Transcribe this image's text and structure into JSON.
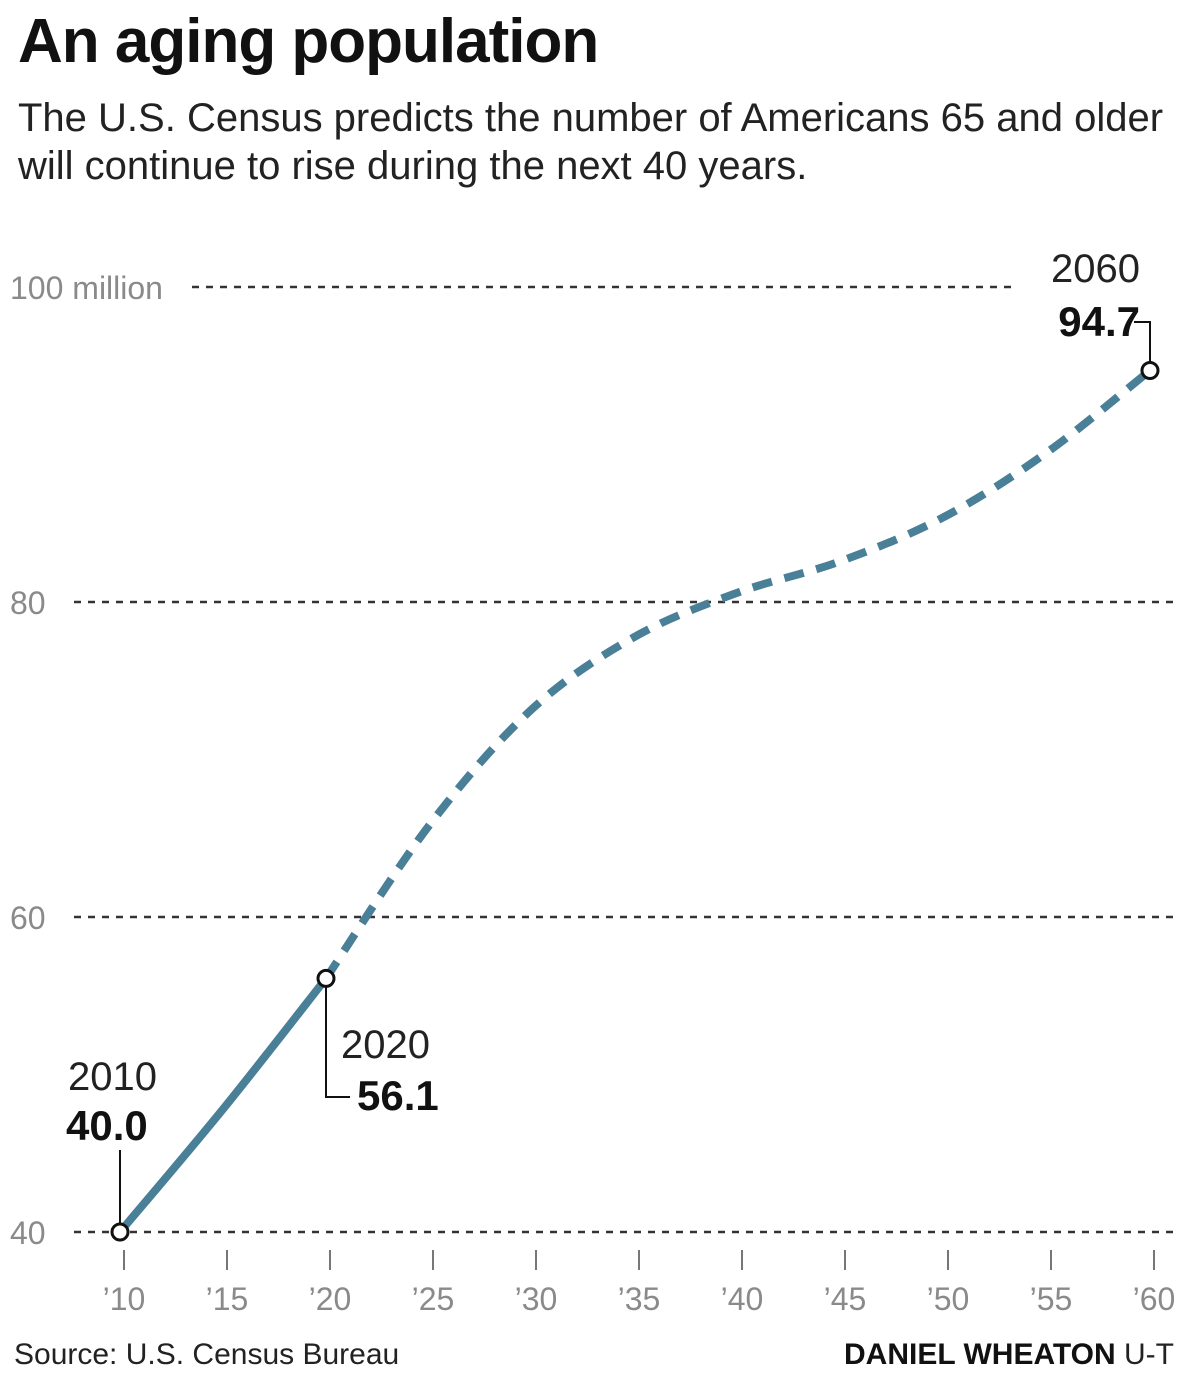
{
  "header": {
    "title": "An aging population",
    "subtitle": "The U.S. Census predicts the number of Americans 65 and older will continue to rise during the next 40 years."
  },
  "footer": {
    "source": "Source: U.S. Census Bureau",
    "credit_name": "DANIEL WHEATON",
    "credit_org": "U-T"
  },
  "chart_data": {
    "type": "line",
    "title": "An aging population",
    "subtitle": "The U.S. Census predicts the number of Americans 65 and older will continue to rise during the next 40 years.",
    "xlabel": "",
    "ylabel": "",
    "xlim": [
      2010,
      2060
    ],
    "ylim": [
      40,
      100
    ],
    "grid": true,
    "legend": "none",
    "x_ticks": [
      2010,
      2015,
      2020,
      2025,
      2030,
      2035,
      2040,
      2045,
      2050,
      2055,
      2060
    ],
    "x_tick_labels": [
      "’10",
      "’15",
      "’20",
      "’25",
      "’30",
      "’35",
      "’40",
      "’45",
      "’50",
      "’55",
      "’60"
    ],
    "y_ticks": [
      40,
      60,
      80,
      100
    ],
    "y_tick_labels": [
      "40",
      "60",
      "80",
      "100 million"
    ],
    "series": [
      {
        "style": "solid",
        "color": "#4a7f98",
        "x": [
          2010,
          2015,
          2020
        ],
        "y": [
          40.0,
          47.8,
          56.1
        ]
      },
      {
        "style": "dashed",
        "color": "#4a7f98",
        "x": [
          2020,
          2025,
          2030,
          2035,
          2040,
          2045,
          2050,
          2055,
          2060
        ],
        "y": [
          56.1,
          65.8,
          73.2,
          77.8,
          80.6,
          82.6,
          85.4,
          89.5,
          94.7
        ]
      }
    ],
    "annotations": [
      {
        "year_label": "2010",
        "value_label": "40.0",
        "x": 2010,
        "y": 40.0
      },
      {
        "year_label": "2020",
        "value_label": "56.1",
        "x": 2020,
        "y": 56.1
      },
      {
        "year_label": "2060",
        "value_label": "94.7",
        "x": 2060,
        "y": 94.7
      }
    ]
  }
}
